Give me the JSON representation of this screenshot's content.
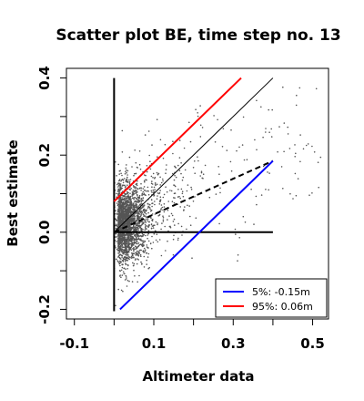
{
  "chart_data": {
    "type": "scatter",
    "title": "Scatter plot BE, time step no. 13",
    "xlabel": "Altimeter data",
    "ylabel": "Best estimate",
    "xlim": [
      -0.12,
      0.54
    ],
    "ylim": [
      -0.225,
      0.425
    ],
    "xticks": [
      "-0.1",
      "0.1",
      "0.3",
      "0.5"
    ],
    "xtick_values": [
      -0.1,
      0.0,
      0.1,
      0.2,
      0.3,
      0.4,
      0.5
    ],
    "yticks": [
      "-0.2",
      "0.0",
      "0.2",
      "0.4"
    ],
    "ytick_values": [
      -0.2,
      -0.1,
      0.0,
      0.1,
      0.2,
      0.3,
      0.4
    ],
    "grid": false,
    "legend_position": "bottom-right",
    "point_color": "#555555",
    "lines": [
      {
        "id": "vertical-axis-line",
        "color": "#000000",
        "style": "solid",
        "width": "thick",
        "x": [
          0.0,
          0.0
        ],
        "y": [
          -0.205,
          0.4
        ]
      },
      {
        "id": "horizontal-zero-line",
        "color": "#000000",
        "style": "solid",
        "width": "thick",
        "x": [
          0.0,
          0.4
        ],
        "y": [
          0.0,
          0.0
        ]
      },
      {
        "id": "identity-line",
        "color": "#000000",
        "style": "solid",
        "width": "thin",
        "x": [
          0.0,
          0.4
        ],
        "y": [
          0.0,
          0.4
        ]
      },
      {
        "id": "regression-line",
        "color": "#000000",
        "style": "dashed",
        "width": "thick",
        "x": [
          0.0,
          0.4
        ],
        "y": [
          0.0,
          0.185
        ]
      },
      {
        "id": "p5-line",
        "color": "#0000ff",
        "style": "solid",
        "width": "thick",
        "x": [
          0.015,
          0.4
        ],
        "y": [
          -0.2,
          0.185
        ]
      },
      {
        "id": "p95-line",
        "color": "#ff0000",
        "style": "solid",
        "width": "thick",
        "x": [
          0.0,
          0.32
        ],
        "y": [
          0.08,
          0.4
        ]
      }
    ],
    "legend": [
      {
        "label": "5%: -0.15m",
        "color": "#0000ff"
      },
      {
        "label": "95%:  0.06m",
        "color": "#ff0000"
      }
    ],
    "scatter": {
      "n_points": 2600,
      "core_center": [
        0.015,
        0.02
      ],
      "description_series": "dense cluster of points near the origin with tail toward upper right"
    }
  }
}
